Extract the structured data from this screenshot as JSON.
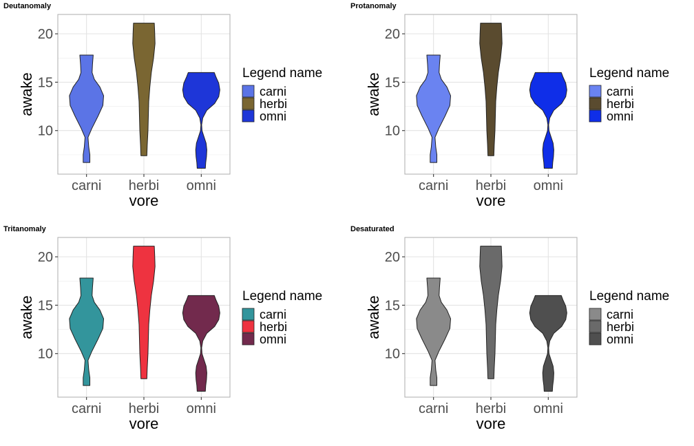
{
  "chart_data": [
    {
      "type": "violin",
      "title": "Deutanomaly",
      "xlabel": "vore",
      "ylabel": "awake",
      "categories": [
        "carni",
        "herbi",
        "omni"
      ],
      "yticks": [
        10,
        15,
        20
      ],
      "ylim": [
        5.5,
        22
      ],
      "legend_title": "Legend name",
      "legend_position": "right",
      "grid": true,
      "colors": [
        "#5b74e6",
        "#7a6632",
        "#1e36d8"
      ]
    },
    {
      "type": "violin",
      "title": "Protanomaly",
      "xlabel": "vore",
      "ylabel": "awake",
      "categories": [
        "carni",
        "herbi",
        "omni"
      ],
      "yticks": [
        10,
        15,
        20
      ],
      "ylim": [
        5.5,
        22
      ],
      "legend_title": "Legend name",
      "legend_position": "right",
      "grid": true,
      "colors": [
        "#6a83f1",
        "#5a4b2f",
        "#0f2ee8"
      ]
    },
    {
      "type": "violin",
      "title": "Tritanomaly",
      "xlabel": "vore",
      "ylabel": "awake",
      "categories": [
        "carni",
        "herbi",
        "omni"
      ],
      "yticks": [
        10,
        15,
        20
      ],
      "ylim": [
        5.5,
        22
      ],
      "legend_title": "Legend name",
      "legend_position": "right",
      "grid": true,
      "colors": [
        "#33959c",
        "#ee3340",
        "#722a4d"
      ]
    },
    {
      "type": "violin",
      "title": "Desaturated",
      "xlabel": "vore",
      "ylabel": "awake",
      "categories": [
        "carni",
        "herbi",
        "omni"
      ],
      "yticks": [
        10,
        15,
        20
      ],
      "ylim": [
        5.5,
        22
      ],
      "legend_title": "Legend name",
      "legend_position": "right",
      "grid": true,
      "colors": [
        "#8a8a8a",
        "#6a6a6a",
        "#4f4f4f"
      ]
    }
  ],
  "violins": [
    {
      "category": "carni",
      "min": 6.7,
      "max": 17.8,
      "profile": [
        [
          6.7,
          0.18
        ],
        [
          7.5,
          0.18
        ],
        [
          8.3,
          0.12
        ],
        [
          9.3,
          0.08
        ],
        [
          10.2,
          0.28
        ],
        [
          11.5,
          0.62
        ],
        [
          12.6,
          0.88
        ],
        [
          13.6,
          0.92
        ],
        [
          14.5,
          0.72
        ],
        [
          15.3,
          0.42
        ],
        [
          16.0,
          0.3
        ],
        [
          16.8,
          0.32
        ],
        [
          17.8,
          0.36
        ]
      ]
    },
    {
      "category": "herbi",
      "min": 7.4,
      "max": 21.1,
      "profile": [
        [
          7.4,
          0.16
        ],
        [
          8.5,
          0.18
        ],
        [
          10.0,
          0.22
        ],
        [
          11.5,
          0.24
        ],
        [
          13.0,
          0.26
        ],
        [
          14.5,
          0.32
        ],
        [
          16.0,
          0.4
        ],
        [
          17.5,
          0.52
        ],
        [
          19.0,
          0.6
        ],
        [
          20.2,
          0.58
        ],
        [
          21.1,
          0.56
        ]
      ]
    },
    {
      "category": "omni",
      "min": 6.1,
      "max": 16.0,
      "profile": [
        [
          6.1,
          0.22
        ],
        [
          6.7,
          0.24
        ],
        [
          7.3,
          0.28
        ],
        [
          8.0,
          0.3
        ],
        [
          8.7,
          0.26
        ],
        [
          9.4,
          0.14
        ],
        [
          10.0,
          0.04
        ],
        [
          10.6,
          0.02
        ],
        [
          11.3,
          0.08
        ],
        [
          12.1,
          0.3
        ],
        [
          12.8,
          0.72
        ],
        [
          13.5,
          0.94
        ],
        [
          14.2,
          1.0
        ],
        [
          14.9,
          0.94
        ],
        [
          15.5,
          0.8
        ],
        [
          16.0,
          0.7
        ]
      ]
    }
  ]
}
